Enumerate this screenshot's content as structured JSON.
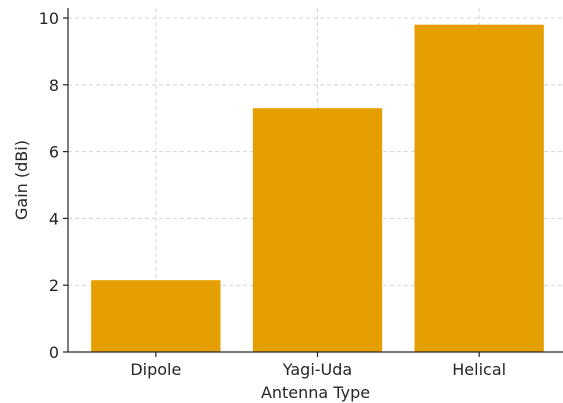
{
  "chart_data": {
    "type": "bar",
    "title": "",
    "xlabel": "Antenna Type",
    "ylabel": "Gain (dBi)",
    "categories": [
      "Dipole",
      "Yagi-Uda",
      "Helical"
    ],
    "values": [
      2.15,
      7.3,
      9.8
    ],
    "ylim": [
      0,
      10.3
    ],
    "yticks": [
      0,
      2,
      4,
      6,
      8,
      10
    ],
    "grid": true,
    "bar_color": "#e69f00"
  }
}
